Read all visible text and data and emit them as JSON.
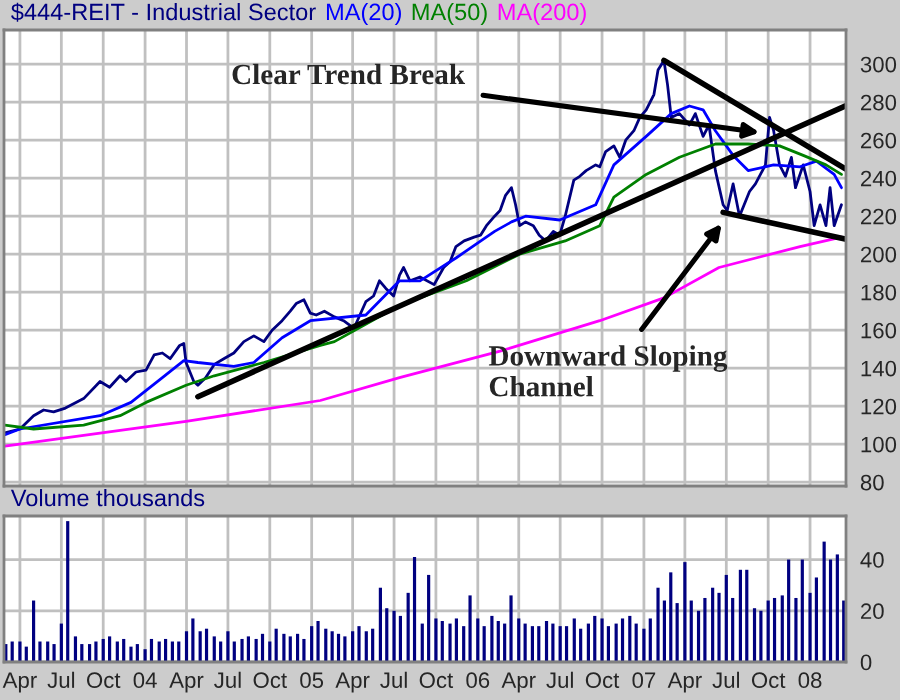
{
  "chart_data": [
    {
      "type": "line",
      "title": "$444-REIT - Industrial Sector",
      "legend": "top",
      "grid": true,
      "tick_labels": "y",
      "xlim": [
        "2003-02-25",
        "2008-03-20"
      ],
      "ylim": [
        78,
        318
      ],
      "yticks": [
        80,
        100,
        120,
        140,
        160,
        180,
        200,
        220,
        240,
        260,
        280,
        300
      ],
      "xticks": [
        {
          "value": "2003-04-01",
          "label": null
        },
        {
          "value": "2003-07-01",
          "label": null
        },
        {
          "value": "2003-10-01",
          "label": null
        },
        {
          "value": "2004-01-01",
          "label": null
        },
        {
          "value": "2004-04-01",
          "label": null
        },
        {
          "value": "2004-07-01",
          "label": null
        },
        {
          "value": "2004-10-01",
          "label": null
        },
        {
          "value": "2005-01-01",
          "label": null
        },
        {
          "value": "2005-04-01",
          "label": null
        },
        {
          "value": "2005-07-01",
          "label": null
        },
        {
          "value": "2005-10-01",
          "label": null
        },
        {
          "value": "2006-01-01",
          "label": null
        },
        {
          "value": "2006-04-01",
          "label": null
        },
        {
          "value": "2006-07-01",
          "label": null
        },
        {
          "value": "2006-10-01",
          "label": null
        },
        {
          "value": "2007-01-01",
          "label": null
        },
        {
          "value": "2007-04-01",
          "label": null
        },
        {
          "value": "2007-07-01",
          "label": null
        },
        {
          "value": "2007-10-01",
          "label": null
        },
        {
          "value": "2008-01-01",
          "label": null
        }
      ],
      "series": [
        {
          "color": "#000080",
          "x": [
            "2003-02-27",
            "2003-04-01",
            "2003-05-01",
            "2003-05-23",
            "2003-06-14",
            "2003-07-10",
            "2003-08-19",
            "2003-09-24",
            "2003-10-15",
            "2003-11-07",
            "2003-11-20",
            "2003-12-12",
            "2004-01-03",
            "2004-01-21",
            "2004-02-08",
            "2004-02-25",
            "2004-03-17",
            "2004-03-26",
            "2004-03-31",
            "2004-04-17",
            "2004-04-26",
            "2004-05-13",
            "2004-06-01",
            "2004-06-22",
            "2004-07-14",
            "2004-08-05",
            "2004-08-27",
            "2004-09-18",
            "2004-10-06",
            "2004-10-28",
            "2004-11-15",
            "2004-11-28",
            "2004-12-15",
            "2004-12-29",
            "2005-01-11",
            "2005-01-29",
            "2005-02-20",
            "2005-03-12",
            "2005-04-04",
            "2005-04-30",
            "2005-05-17",
            "2005-05-30",
            "2005-06-13",
            "2005-06-30",
            "2005-07-13",
            "2005-07-22",
            "2005-08-05",
            "2005-08-27",
            "2005-09-27",
            "2005-10-18",
            "2005-11-01",
            "2005-11-14",
            "2005-12-02",
            "2005-12-24",
            "2006-01-07",
            "2006-01-20",
            "2006-02-07",
            "2006-02-19",
            "2006-03-03",
            "2006-03-16",
            "2006-03-25",
            "2006-04-03",
            "2006-04-16",
            "2006-05-03",
            "2006-05-16",
            "2006-05-30",
            "2006-06-16",
            "2006-06-30",
            "2006-07-12",
            "2006-07-31",
            "2006-08-13",
            "2006-08-27",
            "2006-09-17",
            "2006-09-26",
            "2006-10-09",
            "2006-10-27",
            "2006-11-09",
            "2006-11-22",
            "2006-12-10",
            "2006-12-23",
            "2007-01-06",
            "2007-01-23",
            "2007-02-01",
            "2007-02-14",
            "2007-02-22",
            "2007-03-02",
            "2007-03-20",
            "2007-04-11",
            "2007-04-24",
            "2007-05-11",
            "2007-05-24",
            "2007-06-07",
            "2007-06-24",
            "2007-07-03",
            "2007-07-16",
            "2007-07-30",
            "2007-08-21",
            "2007-09-03",
            "2007-09-25",
            "2007-10-04",
            "2007-10-13",
            "2007-10-26",
            "2007-11-08",
            "2007-11-21",
            "2007-11-30",
            "2007-12-17",
            "2008-01-01",
            "2008-01-10",
            "2008-01-23",
            "2008-02-05",
            "2008-02-14",
            "2008-02-23",
            "2008-03-10"
          ],
          "values": [
            106,
            108,
            115,
            118,
            117,
            119,
            124,
            133,
            130,
            136,
            133,
            138,
            139,
            147,
            148,
            145,
            152,
            153,
            143,
            133,
            131,
            135,
            142,
            145,
            148,
            154,
            157,
            154,
            160,
            165,
            170,
            174,
            176,
            169,
            168,
            170,
            167,
            165,
            161,
            175,
            178,
            186,
            182,
            178,
            189,
            193,
            186,
            188,
            184,
            193,
            196,
            204,
            207,
            209,
            210,
            215,
            220,
            223,
            231,
            235,
            226,
            215,
            217,
            215,
            210,
            207,
            212,
            210,
            220,
            239,
            241,
            244,
            247,
            246,
            254,
            257,
            251,
            260,
            265,
            272,
            276,
            284,
            297,
            302,
            289,
            272,
            274,
            268,
            274,
            262,
            268,
            244,
            226,
            223,
            237,
            220,
            233,
            237,
            247,
            272,
            265,
            247,
            241,
            251,
            235,
            247,
            233,
            215,
            226,
            215,
            235,
            215,
            226
          ]
        },
        {
          "name": "MA(20)",
          "color": "#0000ff",
          "x": [
            "2003-02-27",
            "2003-04-01",
            "2003-09-24",
            "2003-12-01",
            "2004-02-08",
            "2004-03-26",
            "2004-04-26",
            "2004-07-14",
            "2004-08-27",
            "2004-10-28",
            "2004-12-29",
            "2005-04-30",
            "2005-07-13",
            "2005-08-27",
            "2005-11-14",
            "2006-02-07",
            "2006-03-16",
            "2006-04-16",
            "2006-06-30",
            "2006-09-17",
            "2006-10-27",
            "2007-01-06",
            "2007-03-02",
            "2007-04-11",
            "2007-05-11",
            "2007-06-07",
            "2007-07-16",
            "2007-08-18",
            "2007-10-13",
            "2007-12-10",
            "2008-01-15",
            "2008-02-23",
            "2008-03-10"
          ],
          "values": [
            105,
            108,
            115,
            122,
            135,
            144,
            143,
            141,
            143,
            156,
            165,
            168,
            186,
            186,
            198,
            212,
            217,
            220,
            218,
            226,
            247,
            262,
            274,
            278,
            276,
            265,
            252,
            244,
            247,
            246,
            249,
            242,
            235
          ]
        },
        {
          "name": "MA(50)",
          "color": "#008000",
          "x": [
            "2003-02-27",
            "2003-05-01",
            "2003-08-19",
            "2003-11-07",
            "2004-01-03",
            "2004-03-31",
            "2004-06-01",
            "2004-09-18",
            "2005-01-20",
            "2005-02-20",
            "2005-07-13",
            "2005-12-07",
            "2006-04-03",
            "2006-07-12",
            "2006-09-26",
            "2006-10-27",
            "2007-01-06",
            "2007-03-20",
            "2007-06-07",
            "2007-08-18",
            "2007-10-26",
            "2007-12-17",
            "2008-02-05",
            "2008-03-10"
          ],
          "values": [
            110,
            108,
            110,
            115,
            122,
            131,
            136,
            143,
            152,
            154,
            173,
            186,
            200,
            207,
            215,
            230,
            242,
            251,
            258,
            258,
            257,
            252,
            247,
            242
          ]
        },
        {
          "name": "MA(200)",
          "color": "#ff00ff",
          "x": [
            "2003-02-27",
            "2004-03-31",
            "2005-01-20",
            "2005-07-13",
            "2006-02-19",
            "2006-09-26",
            "2007-02-14",
            "2007-06-15",
            "2007-12-10",
            "2008-03-10"
          ],
          "values": [
            99,
            112,
            123,
            135,
            149,
            165,
            177,
            193,
            204,
            209
          ]
        },
        {
          "type": "line",
          "color": "#000000",
          "x": [
            "2004-04-26",
            "2008-03-18"
          ],
          "values": [
            125,
            278
          ]
        },
        {
          "type": "line",
          "color": "#000000",
          "x": [
            "2007-02-14",
            "2008-03-18"
          ],
          "values": [
            302,
            245
          ]
        },
        {
          "type": "line",
          "color": "#000000",
          "x": [
            "2007-06-24",
            "2008-03-18"
          ],
          "values": [
            222,
            208
          ]
        }
      ],
      "annotations": [
        {
          "text": "Clear Trend Break",
          "x": "2007-09-12",
          "y": 264
        },
        {
          "text": "Downward Sloping\nChannel",
          "x": "2007-06-21",
          "y": 216
        }
      ]
    },
    {
      "type": "bar",
      "title": "Volume thousands",
      "grid": true,
      "color": "#000080",
      "xlim": [
        "2003-02-25",
        "2008-03-20"
      ],
      "ylim": [
        0,
        57
      ],
      "yticks": [
        0,
        20,
        40
      ],
      "xticks": [
        {
          "value": "2003-04-01",
          "label": "Apr"
        },
        {
          "value": "2003-07-01",
          "label": "Jul"
        },
        {
          "value": "2003-10-01",
          "label": "Oct"
        },
        {
          "value": "2004-01-01",
          "label": "04"
        },
        {
          "value": "2004-04-01",
          "label": "Apr"
        },
        {
          "value": "2004-07-01",
          "label": "Jul"
        },
        {
          "value": "2004-10-01",
          "label": "Oct"
        },
        {
          "value": "2005-01-01",
          "label": "05"
        },
        {
          "value": "2005-04-01",
          "label": "Apr"
        },
        {
          "value": "2005-07-01",
          "label": "Jul"
        },
        {
          "value": "2005-10-01",
          "label": "Oct"
        },
        {
          "value": "2006-01-01",
          "label": "06"
        },
        {
          "value": "2006-04-01",
          "label": "Apr"
        },
        {
          "value": "2006-07-01",
          "label": "Jul"
        },
        {
          "value": "2006-10-01",
          "label": "Oct"
        },
        {
          "value": "2007-01-01",
          "label": "07"
        },
        {
          "value": "2007-04-01",
          "label": "Apr"
        },
        {
          "value": "2007-07-01",
          "label": "Jul"
        },
        {
          "value": "2007-10-01",
          "label": "Oct"
        },
        {
          "value": "2008-01-01",
          "label": "08"
        }
      ],
      "x": [
        "2003-03-01",
        "2003-03-15",
        "2003-04-01",
        "2003-04-15",
        "2003-05-01",
        "2003-05-15",
        "2003-06-01",
        "2003-06-15",
        "2003-07-01",
        "2003-07-15",
        "2003-08-01",
        "2003-08-15",
        "2003-09-01",
        "2003-09-15",
        "2003-10-01",
        "2003-10-15",
        "2003-11-01",
        "2003-11-15",
        "2003-12-01",
        "2003-12-15",
        "2004-01-01",
        "2004-01-15",
        "2004-02-01",
        "2004-02-15",
        "2004-03-01",
        "2004-03-15",
        "2004-04-01",
        "2004-04-15",
        "2004-05-01",
        "2004-05-15",
        "2004-06-01",
        "2004-06-15",
        "2004-07-01",
        "2004-07-15",
        "2004-08-01",
        "2004-08-15",
        "2004-09-01",
        "2004-09-15",
        "2004-10-01",
        "2004-10-15",
        "2004-11-01",
        "2004-11-15",
        "2004-12-01",
        "2004-12-15",
        "2005-01-01",
        "2005-01-15",
        "2005-02-01",
        "2005-02-15",
        "2005-03-01",
        "2005-03-15",
        "2005-04-01",
        "2005-04-15",
        "2005-05-01",
        "2005-05-15",
        "2005-06-01",
        "2005-06-15",
        "2005-07-01",
        "2005-07-15",
        "2005-08-01",
        "2005-08-15",
        "2005-09-01",
        "2005-09-15",
        "2005-10-01",
        "2005-10-15",
        "2005-11-01",
        "2005-11-15",
        "2005-12-01",
        "2005-12-15",
        "2006-01-01",
        "2006-01-15",
        "2006-02-01",
        "2006-02-15",
        "2006-03-01",
        "2006-03-15",
        "2006-04-01",
        "2006-04-15",
        "2006-05-01",
        "2006-05-15",
        "2006-06-01",
        "2006-06-15",
        "2006-07-01",
        "2006-07-15",
        "2006-08-01",
        "2006-08-15",
        "2006-09-01",
        "2006-09-15",
        "2006-10-01",
        "2006-10-15",
        "2006-11-01",
        "2006-11-15",
        "2006-12-01",
        "2006-12-15",
        "2007-01-01",
        "2007-01-15",
        "2007-02-01",
        "2007-02-15",
        "2007-03-01",
        "2007-03-15",
        "2007-04-01",
        "2007-04-15",
        "2007-05-01",
        "2007-05-15",
        "2007-06-01",
        "2007-06-15",
        "2007-07-01",
        "2007-07-15",
        "2007-08-01",
        "2007-08-15",
        "2007-09-01",
        "2007-09-15",
        "2007-10-01",
        "2007-10-15",
        "2007-11-01",
        "2007-11-15",
        "2007-12-01",
        "2007-12-15",
        "2008-01-01",
        "2008-01-15",
        "2008-02-01",
        "2008-02-15",
        "2008-03-01",
        "2008-03-15"
      ],
      "values": [
        7,
        8,
        8,
        6,
        24,
        8,
        8,
        7,
        15,
        55,
        10,
        7,
        7,
        8,
        9,
        10,
        8,
        9,
        6,
        7,
        5,
        9,
        8,
        9,
        8,
        8,
        12,
        17,
        12,
        13,
        10,
        8,
        12,
        8,
        9,
        10,
        9,
        11,
        8,
        13,
        11,
        10,
        11,
        9,
        14,
        16,
        13,
        12,
        11,
        10,
        12,
        14,
        12,
        13,
        29,
        21,
        20,
        18,
        27,
        41,
        15,
        34,
        17,
        16,
        15,
        17,
        14,
        26,
        17,
        14,
        18,
        16,
        15,
        26,
        17,
        15,
        14,
        14,
        16,
        15,
        14,
        14,
        17,
        13,
        15,
        18,
        17,
        14,
        15,
        17,
        18,
        15,
        13,
        17,
        29,
        24,
        35,
        23,
        39,
        24,
        20,
        25,
        29,
        27,
        34,
        25,
        36,
        36,
        21,
        20,
        24,
        25,
        26,
        40,
        25,
        40,
        27,
        33,
        47,
        40,
        42,
        24
      ]
    }
  ]
}
